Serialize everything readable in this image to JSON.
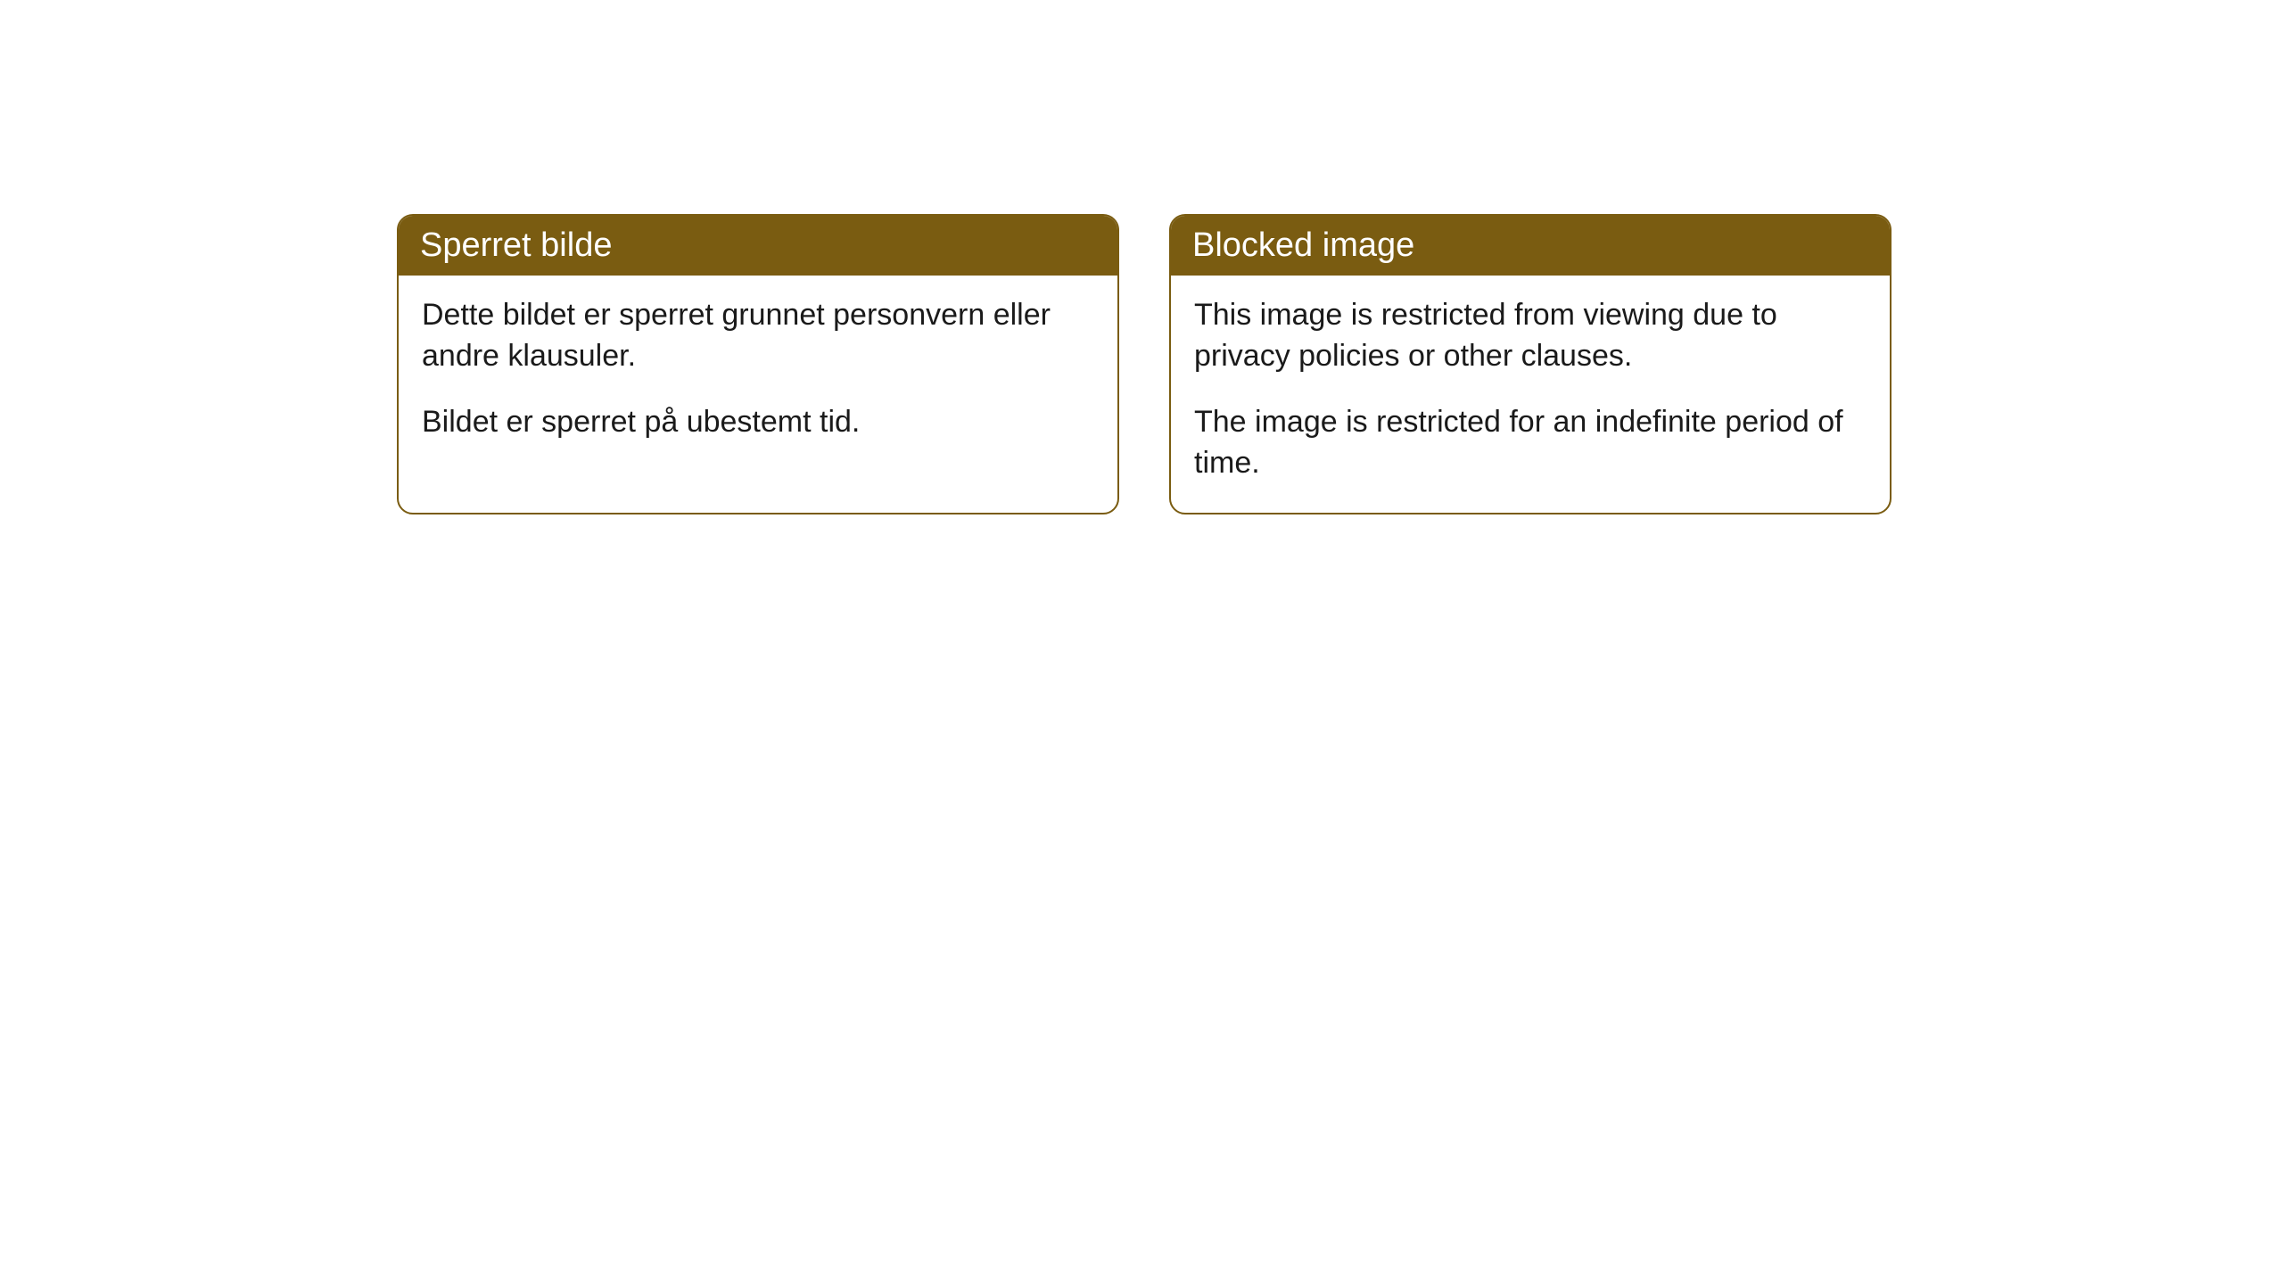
{
  "cards": [
    {
      "title": "Sperret bilde",
      "paragraph1": "Dette bildet er sperret grunnet personvern eller andre klausuler.",
      "paragraph2": "Bildet er sperret på ubestemt tid."
    },
    {
      "title": "Blocked image",
      "paragraph1": "This image is restricted from viewing due to privacy policies or other clauses.",
      "paragraph2": "The image is restricted for an indefinite period of time."
    }
  ],
  "styling": {
    "header_background": "#7a5c11",
    "header_text_color": "#ffffff",
    "border_color": "#7a5c11",
    "body_background": "#ffffff",
    "body_text_color": "#1a1a1a",
    "border_radius": 18,
    "title_fontsize": 38,
    "body_fontsize": 34
  }
}
